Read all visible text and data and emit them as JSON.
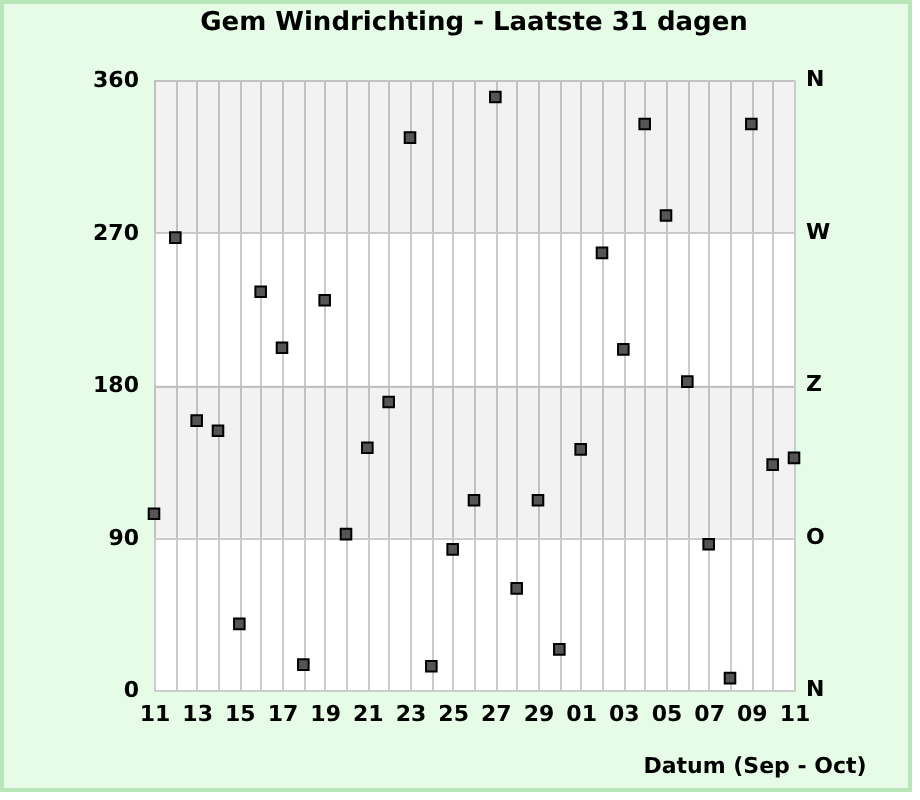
{
  "chart_data": {
    "type": "scatter",
    "title": "Gem Windrichting - Laatste 31 dagen",
    "xlabel": "Datum (Sep - Oct)",
    "x": [
      "--09-11",
      "--09-12",
      "--09-13",
      "--09-14",
      "--09-15",
      "--09-16",
      "--09-17",
      "--09-18",
      "--09-19",
      "--09-20",
      "--09-21",
      "--09-22",
      "--09-23",
      "--09-24",
      "--09-25",
      "--09-26",
      "--09-27",
      "--09-28",
      "--09-29",
      "--09-30",
      "--10-01",
      "--10-02",
      "--10-03",
      "--10-04",
      "--10-05",
      "--10-06",
      "--10-07",
      "--10-08",
      "--10-09",
      "--10-10",
      "--10-11"
    ],
    "series": [
      {
        "color": "#555555",
        "values": [
          104,
          267,
          159,
          153,
          39,
          235,
          202,
          15,
          230,
          92,
          143,
          170,
          326,
          14,
          83,
          112,
          350,
          60,
          112,
          24,
          142,
          258,
          201,
          334,
          280,
          182,
          86,
          7,
          334,
          133,
          137
        ]
      }
    ],
    "xlim": [
      "--09-11",
      "--10-11"
    ],
    "xticks": [
      {
        "value": "--09-11",
        "label": "11"
      },
      {
        "value": "--09-12",
        "label": null
      },
      {
        "value": "--09-13",
        "label": "13"
      },
      {
        "value": "--09-14",
        "label": null
      },
      {
        "value": "--09-15",
        "label": "15"
      },
      {
        "value": "--09-16",
        "label": null
      },
      {
        "value": "--09-17",
        "label": "17"
      },
      {
        "value": "--09-18",
        "label": null
      },
      {
        "value": "--09-19",
        "label": "19"
      },
      {
        "value": "--09-20",
        "label": null
      },
      {
        "value": "--09-21",
        "label": "21"
      },
      {
        "value": "--09-22",
        "label": null
      },
      {
        "value": "--09-23",
        "label": "23"
      },
      {
        "value": "--09-24",
        "label": null
      },
      {
        "value": "--09-25",
        "label": "25"
      },
      {
        "value": "--09-26",
        "label": null
      },
      {
        "value": "--09-27",
        "label": "27"
      },
      {
        "value": "--09-28",
        "label": null
      },
      {
        "value": "--09-29",
        "label": "29"
      },
      {
        "value": "--09-30",
        "label": null
      },
      {
        "value": "--10-01",
        "label": "01"
      },
      {
        "value": "--10-02",
        "label": null
      },
      {
        "value": "--10-03",
        "label": "03"
      },
      {
        "value": "--10-04",
        "label": null
      },
      {
        "value": "--10-05",
        "label": "05"
      },
      {
        "value": "--10-06",
        "label": null
      },
      {
        "value": "--10-07",
        "label": "07"
      },
      {
        "value": "--10-08",
        "label": null
      },
      {
        "value": "--10-09",
        "label": "09"
      },
      {
        "value": "--10-10",
        "label": null
      },
      {
        "value": "--10-11",
        "label": "11"
      }
    ],
    "ylim": [
      0,
      360
    ],
    "yticks": [
      0,
      90,
      180,
      270,
      360
    ],
    "annotations": [
      "N",
      "W",
      "Z",
      "O",
      "N"
    ],
    "bands": [
      {
        "axis": "y",
        "from": 90,
        "to": 180,
        "color": "#f2f2f2"
      },
      {
        "axis": "y",
        "from": 270,
        "to": 360,
        "color": "#f2f2f2"
      }
    ],
    "grid": true,
    "marker": "square"
  }
}
